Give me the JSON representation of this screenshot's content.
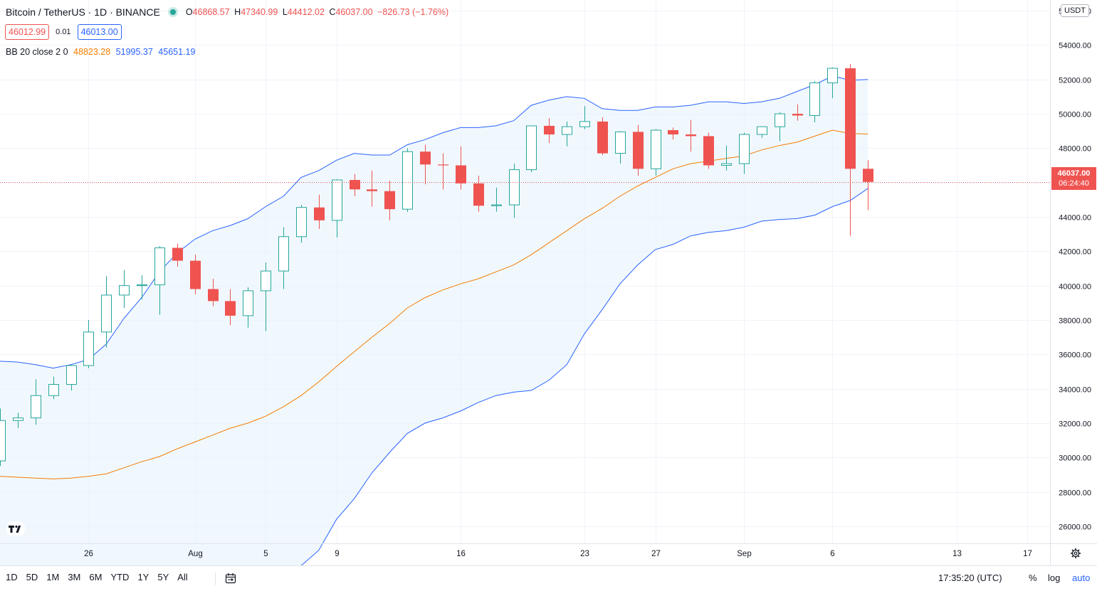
{
  "header": {
    "title": "Bitcoin / TetherUS · 1D · BINANCE",
    "ohlc": {
      "o_label": "O",
      "o": "46868.57",
      "h_label": "H",
      "h": "47340.99",
      "l_label": "L",
      "l": "44412.02",
      "c_label": "C",
      "c": "46037.00",
      "change": "−826.73 (−1.76%)"
    },
    "sell_price": "46012.99",
    "spread": "0.01",
    "buy_price": "46013.00"
  },
  "indicator": {
    "name": "BB 20 close 2 0",
    "basis": "48823.28",
    "upper": "51995.37",
    "lower": "45651.19"
  },
  "price_axis": {
    "currency": "USDT",
    "last_price": "46037.00",
    "countdown": "06:24:40"
  },
  "toolbar": {
    "ranges": [
      "1D",
      "5D",
      "1M",
      "3M",
      "6M",
      "YTD",
      "1Y",
      "5Y",
      "All"
    ],
    "clock": "17:35:20 (UTC)",
    "percent": "%",
    "log": "log",
    "auto": "auto"
  },
  "colors": {
    "up": "#26a69a",
    "down": "#ef5350",
    "band": "#2962ff",
    "basis": "#f57c00",
    "fill": "#e3f2fd"
  },
  "chart_data": {
    "type": "candlestick",
    "title": "Bitcoin / TetherUS · 1D · BINANCE",
    "ylim": [
      25000,
      56500
    ],
    "y_ticks": [
      26000,
      28000,
      30000,
      32000,
      34000,
      36000,
      38000,
      40000,
      42000,
      44000,
      46000,
      48000,
      50000,
      52000,
      54000,
      56000
    ],
    "x_tick_labels": [
      {
        "label": "26",
        "index": 5
      },
      {
        "label": "Aug",
        "index": 11
      },
      {
        "label": "5",
        "index": 15
      },
      {
        "label": "9",
        "index": 19
      },
      {
        "label": "16",
        "index": 26
      },
      {
        "label": "23",
        "index": 33
      },
      {
        "label": "27",
        "index": 37
      },
      {
        "label": "Sep",
        "index": 42
      },
      {
        "label": "6",
        "index": 47
      },
      {
        "label": "13",
        "index": 54
      },
      {
        "label": "17",
        "index": 58
      }
    ],
    "start_date": "2021-07-21",
    "last_price": 46037.0,
    "candles": [
      {
        "o": 29800,
        "h": 32850,
        "l": 29500,
        "c": 32150
      },
      {
        "o": 32150,
        "h": 32600,
        "l": 31700,
        "c": 32300
      },
      {
        "o": 32300,
        "h": 34550,
        "l": 31900,
        "c": 33600
      },
      {
        "o": 33600,
        "h": 34700,
        "l": 33400,
        "c": 34250
      },
      {
        "o": 34250,
        "h": 35400,
        "l": 33900,
        "c": 35350
      },
      {
        "o": 35350,
        "h": 38000,
        "l": 35200,
        "c": 37300
      },
      {
        "o": 37300,
        "h": 40550,
        "l": 36400,
        "c": 39450
      },
      {
        "o": 39450,
        "h": 40900,
        "l": 38700,
        "c": 40000
      },
      {
        "o": 40000,
        "h": 40600,
        "l": 39200,
        "c": 40050
      },
      {
        "o": 40050,
        "h": 42300,
        "l": 38300,
        "c": 42200
      },
      {
        "o": 42200,
        "h": 42450,
        "l": 41100,
        "c": 41450
      },
      {
        "o": 41450,
        "h": 41800,
        "l": 39500,
        "c": 39800
      },
      {
        "o": 39800,
        "h": 40400,
        "l": 38800,
        "c": 39100
      },
      {
        "o": 39100,
        "h": 39800,
        "l": 37700,
        "c": 38250
      },
      {
        "o": 38250,
        "h": 39900,
        "l": 37550,
        "c": 39700
      },
      {
        "o": 39700,
        "h": 41350,
        "l": 37350,
        "c": 40850
      },
      {
        "o": 40850,
        "h": 43400,
        "l": 39800,
        "c": 42850
      },
      {
        "o": 42850,
        "h": 44700,
        "l": 42500,
        "c": 44550
      },
      {
        "o": 44550,
        "h": 45300,
        "l": 43300,
        "c": 43800
      },
      {
        "o": 43800,
        "h": 46200,
        "l": 42800,
        "c": 46150
      },
      {
        "o": 46150,
        "h": 46500,
        "l": 45200,
        "c": 45600
      },
      {
        "o": 45600,
        "h": 46700,
        "l": 44600,
        "c": 45500
      },
      {
        "o": 45500,
        "h": 46100,
        "l": 43800,
        "c": 44450
      },
      {
        "o": 44450,
        "h": 48000,
        "l": 44300,
        "c": 47800
      },
      {
        "o": 47800,
        "h": 48200,
        "l": 45900,
        "c": 47050
      },
      {
        "o": 47050,
        "h": 47700,
        "l": 45600,
        "c": 47000
      },
      {
        "o": 47000,
        "h": 48100,
        "l": 45600,
        "c": 45950
      },
      {
        "o": 45950,
        "h": 46400,
        "l": 44300,
        "c": 44650
      },
      {
        "o": 44650,
        "h": 45700,
        "l": 44300,
        "c": 44700
      },
      {
        "o": 44700,
        "h": 47100,
        "l": 43950,
        "c": 46750
      },
      {
        "o": 46750,
        "h": 49300,
        "l": 46600,
        "c": 49300
      },
      {
        "o": 49300,
        "h": 49750,
        "l": 48300,
        "c": 48800
      },
      {
        "o": 48800,
        "h": 49550,
        "l": 48100,
        "c": 49250
      },
      {
        "o": 49250,
        "h": 50450,
        "l": 49100,
        "c": 49550
      },
      {
        "o": 49550,
        "h": 49800,
        "l": 47600,
        "c": 47700
      },
      {
        "o": 47700,
        "h": 49000,
        "l": 47100,
        "c": 48950
      },
      {
        "o": 48950,
        "h": 49350,
        "l": 46400,
        "c": 46800
      },
      {
        "o": 46800,
        "h": 49100,
        "l": 46400,
        "c": 49050
      },
      {
        "o": 49050,
        "h": 49200,
        "l": 48500,
        "c": 48800
      },
      {
        "o": 48800,
        "h": 49650,
        "l": 47800,
        "c": 48700
      },
      {
        "o": 48700,
        "h": 48900,
        "l": 46800,
        "c": 47000
      },
      {
        "o": 47000,
        "h": 48150,
        "l": 46700,
        "c": 47100
      },
      {
        "o": 47100,
        "h": 48900,
        "l": 46500,
        "c": 48800
      },
      {
        "o": 48800,
        "h": 49100,
        "l": 48600,
        "c": 49250
      },
      {
        "o": 49250,
        "h": 50100,
        "l": 48400,
        "c": 50000
      },
      {
        "o": 50000,
        "h": 50550,
        "l": 49600,
        "c": 49900
      },
      {
        "o": 49900,
        "h": 51900,
        "l": 49500,
        "c": 51800
      },
      {
        "o": 51800,
        "h": 52700,
        "l": 50900,
        "c": 52650
      },
      {
        "o": 52650,
        "h": 52900,
        "l": 42900,
        "c": 46800
      },
      {
        "o": 46800,
        "h": 47300,
        "l": 44400,
        "c": 46037
      }
    ],
    "bb_upper": [
      35600,
      35550,
      35400,
      35200,
      35400,
      35700,
      36600,
      38100,
      39300,
      40800,
      41900,
      42700,
      43200,
      43500,
      43900,
      44600,
      45200,
      46300,
      46700,
      47300,
      47700,
      47600,
      47600,
      48200,
      48500,
      48900,
      49200,
      49200,
      49300,
      49600,
      50500,
      50800,
      51000,
      50900,
      50300,
      50200,
      50200,
      50400,
      50400,
      50500,
      50700,
      50700,
      50600,
      50700,
      50900,
      51300,
      51700,
      52200,
      51950,
      52000
    ],
    "bb_basis": [
      28900,
      28850,
      28800,
      28750,
      28800,
      28900,
      29050,
      29400,
      29750,
      30050,
      30500,
      30900,
      31300,
      31700,
      32000,
      32400,
      32950,
      33600,
      34400,
      35300,
      36150,
      37000,
      37800,
      38700,
      39300,
      39750,
      40100,
      40400,
      40800,
      41200,
      41800,
      42500,
      43200,
      43900,
      44500,
      45200,
      45800,
      46300,
      46800,
      47100,
      47250,
      47400,
      47550,
      47900,
      48150,
      48350,
      48700,
      49050,
      48850,
      48823
    ],
    "bb_lower": [
      22200,
      22150,
      22100,
      22350,
      22600,
      22750,
      22500,
      22050,
      21750,
      21550,
      21300,
      21250,
      21350,
      21600,
      21900,
      22400,
      22800,
      23700,
      24600,
      26400,
      27600,
      29100,
      30300,
      31400,
      32000,
      32300,
      32700,
      33200,
      33600,
      33800,
      33900,
      34500,
      35400,
      37200,
      38600,
      40100,
      41200,
      42100,
      42400,
      42900,
      43100,
      43200,
      43400,
      43750,
      43850,
      43900,
      44100,
      44600,
      44950,
      45650
    ]
  }
}
